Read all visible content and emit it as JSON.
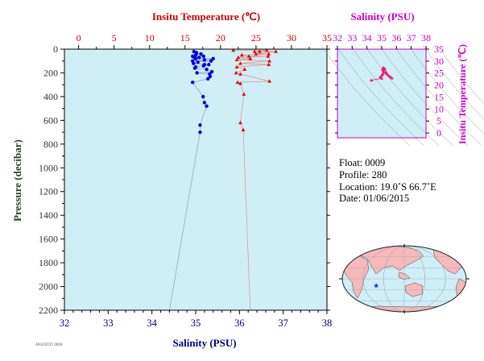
{
  "chart_data": {
    "main": {
      "type": "scatter",
      "top_axis_title": "Insitu Temperature (℃)",
      "bottom_axis_title": "Salinity (PSU)",
      "left_axis_title": "Pressure (decibar)",
      "temperature_ticks": [
        "0",
        "5",
        "10",
        "15",
        "20",
        "25",
        "30",
        "35"
      ],
      "salinity_ticks": [
        "32",
        "33",
        "34",
        "35",
        "36",
        "37",
        "38"
      ],
      "pressure_ticks": [
        "0",
        "200",
        "400",
        "600",
        "800",
        "1000",
        "1200",
        "1400",
        "1600",
        "1800",
        "2000",
        "2200"
      ],
      "temperature_range": [
        -2,
        35
      ],
      "salinity_range": [
        32,
        38
      ],
      "pressure_range": [
        0,
        2200
      ],
      "series": [
        {
          "name": "Salinity",
          "color": "#0000dd",
          "marker": "circle",
          "points": [
            {
              "s": 34.96,
              "p": 20
            },
            {
              "s": 35.02,
              "p": 30
            },
            {
              "s": 35.12,
              "p": 40
            },
            {
              "s": 35.0,
              "p": 50
            },
            {
              "s": 34.93,
              "p": 60
            },
            {
              "s": 35.18,
              "p": 60
            },
            {
              "s": 34.97,
              "p": 70
            },
            {
              "s": 35.08,
              "p": 70
            },
            {
              "s": 35.0,
              "p": 80
            },
            {
              "s": 35.4,
              "p": 80
            },
            {
              "s": 35.2,
              "p": 90
            },
            {
              "s": 34.93,
              "p": 100
            },
            {
              "s": 35.35,
              "p": 100
            },
            {
              "s": 35.05,
              "p": 110
            },
            {
              "s": 34.95,
              "p": 120
            },
            {
              "s": 35.2,
              "p": 130
            },
            {
              "s": 35.3,
              "p": 130
            },
            {
              "s": 35.18,
              "p": 140
            },
            {
              "s": 35.0,
              "p": 150
            },
            {
              "s": 34.98,
              "p": 160
            },
            {
              "s": 35.25,
              "p": 170
            },
            {
              "s": 35.37,
              "p": 190
            },
            {
              "s": 35.03,
              "p": 200
            },
            {
              "s": 35.32,
              "p": 210
            },
            {
              "s": 35.33,
              "p": 230
            },
            {
              "s": 35.28,
              "p": 250
            },
            {
              "s": 34.93,
              "p": 280
            },
            {
              "s": 35.17,
              "p": 400
            },
            {
              "s": 35.2,
              "p": 450
            },
            {
              "s": 35.25,
              "p": 480
            },
            {
              "s": 35.1,
              "p": 640
            },
            {
              "s": 35.1,
              "p": 700
            }
          ],
          "deep_point": {
            "s": 34.4,
            "p": 2200
          }
        },
        {
          "name": "Temperature",
          "color": "#ee0000",
          "marker": "triangle",
          "points": [
            {
              "t": 21.8,
              "p": 10
            },
            {
              "t": 26.5,
              "p": 10
            },
            {
              "t": 24.8,
              "p": 20
            },
            {
              "t": 25.5,
              "p": 20
            },
            {
              "t": 27.8,
              "p": 20
            },
            {
              "t": 25.0,
              "p": 40
            },
            {
              "t": 26.8,
              "p": 40
            },
            {
              "t": 23.0,
              "p": 50
            },
            {
              "t": 24.0,
              "p": 60
            },
            {
              "t": 26.7,
              "p": 60
            },
            {
              "t": 22.5,
              "p": 70
            },
            {
              "t": 24.2,
              "p": 80
            },
            {
              "t": 22.3,
              "p": 90
            },
            {
              "t": 26.9,
              "p": 100
            },
            {
              "t": 22.8,
              "p": 120
            },
            {
              "t": 26.8,
              "p": 130
            },
            {
              "t": 22.3,
              "p": 150
            },
            {
              "t": 23.4,
              "p": 170
            },
            {
              "t": 22.2,
              "p": 200
            },
            {
              "t": 22.8,
              "p": 210
            },
            {
              "t": 26.9,
              "p": 270
            },
            {
              "t": 22.4,
              "p": 280
            },
            {
              "t": 22.8,
              "p": 290
            },
            {
              "t": 23.3,
              "p": 380
            },
            {
              "t": 22.8,
              "p": 620
            },
            {
              "t": 23.2,
              "p": 680
            }
          ],
          "deep_point": {
            "t": 24.2,
            "p": 2200
          }
        }
      ]
    },
    "ts_diagram": {
      "type": "scatter",
      "top_axis_title": "Salinity (PSU)",
      "right_axis_title": "Insitu Temperature (℃)",
      "salinity_ticks": [
        "32",
        "33",
        "34",
        "35",
        "36",
        "37",
        "38"
      ],
      "temperature_ticks": [
        "0",
        "5",
        "10",
        "15",
        "20",
        "25",
        "30",
        "35"
      ],
      "salinity_range": [
        32,
        38
      ],
      "temperature_range": [
        -2,
        35
      ],
      "color": "#ee1177",
      "points": [
        {
          "s": 34.3,
          "t": 22.0
        },
        {
          "s": 35.0,
          "t": 22.8
        },
        {
          "s": 34.9,
          "t": 23.4
        },
        {
          "s": 35.0,
          "t": 24.0
        },
        {
          "s": 35.05,
          "t": 24.5
        },
        {
          "s": 35.1,
          "t": 25.0
        },
        {
          "s": 35.15,
          "t": 25.5
        },
        {
          "s": 35.1,
          "t": 26.0
        },
        {
          "s": 35.2,
          "t": 26.6
        },
        {
          "s": 35.05,
          "t": 26.5
        },
        {
          "s": 35.3,
          "t": 25.2
        },
        {
          "s": 35.4,
          "t": 24.3
        },
        {
          "s": 35.5,
          "t": 23.8
        },
        {
          "s": 35.6,
          "t": 23.3
        },
        {
          "s": 35.7,
          "t": 22.9
        },
        {
          "s": 35.35,
          "t": 24.8
        },
        {
          "s": 35.2,
          "t": 26.9
        },
        {
          "s": 35.1,
          "t": 27.3
        }
      ]
    }
  },
  "float_info": {
    "float_line": "Float:  0009",
    "profile_line": "Profile:  280",
    "location_line": "Location:  19.0˚S  66.7˚E",
    "date_line": "Date:  01/06/2015"
  },
  "map": {
    "marker_label": "float-position",
    "marker_lat": -19.0,
    "marker_lon": 66.7,
    "ocean_color": "#cfeef6",
    "land_color": "#f7b9b9",
    "marker_color": "#1133cc"
  },
  "footer": {
    "small_text": "ARGO2015 0009"
  },
  "colors": {
    "plot_bg": "#cfeef6",
    "temperature": "#cc0000",
    "salinity": "#000088",
    "pressure": "#333333",
    "ts_axis": "#cc00cc"
  }
}
